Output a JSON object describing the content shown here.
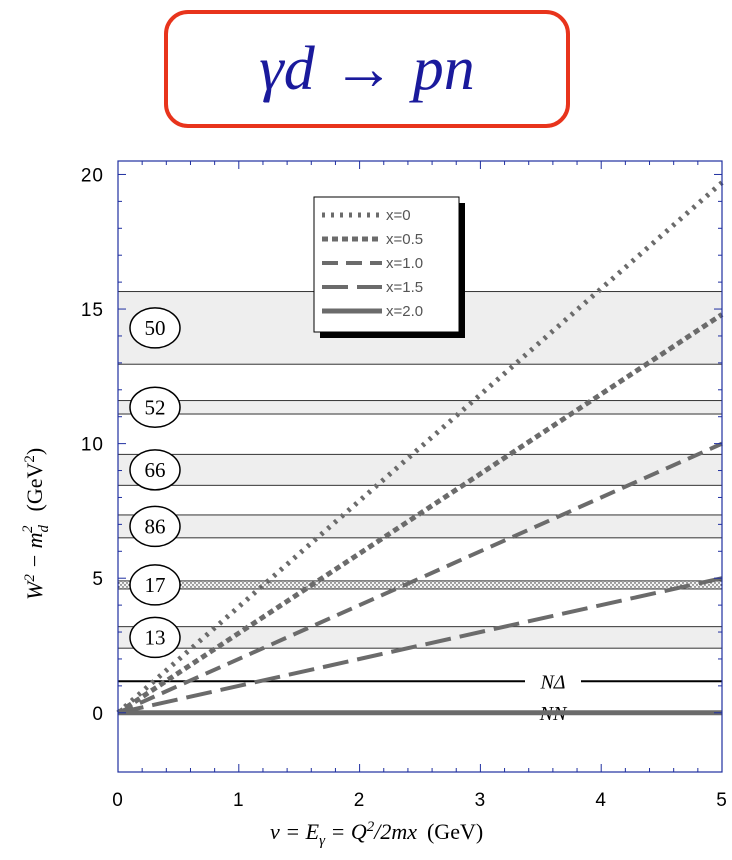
{
  "title": {
    "lhs": "γd",
    "arrow": "→",
    "rhs": "pn"
  },
  "chart_data": {
    "type": "line",
    "xlabel": "ν = E_γ = Q²/2mx (GeV)",
    "ylabel": "W² − m_d² (GeV²)",
    "xlim": [
      0,
      5
    ],
    "ylim": [
      -2.2,
      20.5
    ],
    "x_ticks": [
      "0",
      "1",
      "2",
      "3",
      "4",
      "5"
    ],
    "y_ticks": [
      "0",
      "5",
      "10",
      "15",
      "20"
    ],
    "legend_position": "top-center",
    "colors": {
      "series": "#6b6b6b",
      "band_fill": "#eeeeee",
      "band_stroke": "#333333",
      "frame": "#1f2fa0",
      "title": "#1a1a9c",
      "title_border": "#e8341c"
    },
    "series": [
      {
        "name": "x=0",
        "x": [
          0,
          5
        ],
        "y": [
          0,
          19.7
        ],
        "dash": "3,6",
        "width": 5
      },
      {
        "name": "x=0.5",
        "x": [
          0,
          5
        ],
        "y": [
          0,
          14.8
        ],
        "dash": "6,4",
        "width": 5
      },
      {
        "name": "x=1.0",
        "x": [
          0,
          5
        ],
        "y": [
          0,
          10.0
        ],
        "dash": "16,8",
        "width": 4
      },
      {
        "name": "x=1.5",
        "x": [
          0,
          5
        ],
        "y": [
          0,
          5.0
        ],
        "dash": "26,9",
        "width": 4
      },
      {
        "name": "x=2.0",
        "x": [
          0,
          5
        ],
        "y": [
          0,
          0
        ],
        "dash": "",
        "width": 5
      }
    ],
    "bands": [
      {
        "label": "50",
        "y_low": 12.95,
        "y_high": 15.65,
        "dotted": false
      },
      {
        "label": "52",
        "y_low": 11.1,
        "y_high": 11.6,
        "dotted": false
      },
      {
        "label": "66",
        "y_low": 8.45,
        "y_high": 9.6,
        "dotted": false
      },
      {
        "label": "86",
        "y_low": 6.5,
        "y_high": 7.35,
        "dotted": false
      },
      {
        "label": "17",
        "y_low": 4.6,
        "y_high": 4.9,
        "dotted": true
      },
      {
        "label": "13",
        "y_low": 2.4,
        "y_high": 3.2,
        "dotted": false
      }
    ],
    "thresholds": [
      {
        "label": "NΔ",
        "y": 1.17
      },
      {
        "label": "NN",
        "y": 0
      }
    ]
  }
}
